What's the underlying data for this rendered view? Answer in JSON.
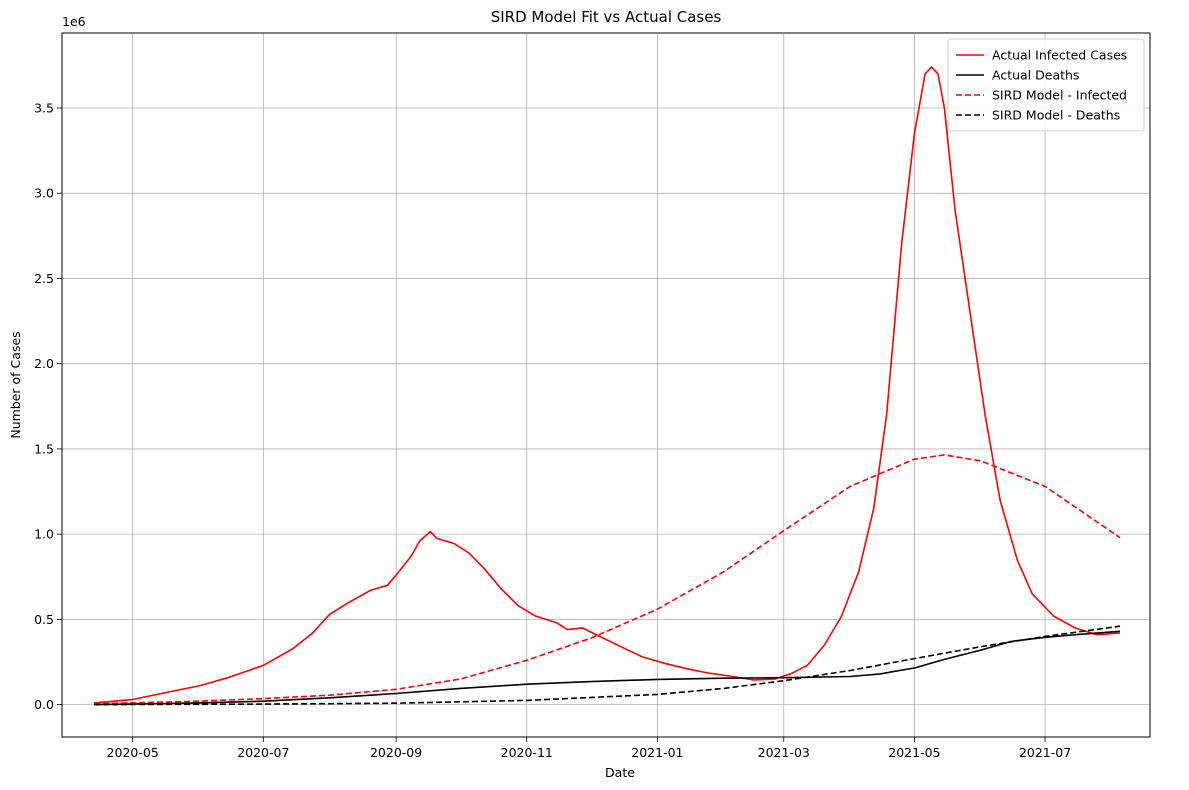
{
  "chart_data": {
    "type": "line",
    "title": "SIRD Model Fit vs Actual Cases",
    "xlabel": "Date",
    "ylabel": "Number of Cases",
    "y_scale_note": "1e6",
    "grid": true,
    "legend_position": "top-right",
    "x_range": [
      "2020-03-29",
      "2021-08-19"
    ],
    "ylim": [
      -190000,
      3940000
    ],
    "x_ticks": [
      {
        "label": "2020-05",
        "date": "2020-05-01"
      },
      {
        "label": "2020-07",
        "date": "2020-07-01"
      },
      {
        "label": "2020-09",
        "date": "2020-09-01"
      },
      {
        "label": "2020-11",
        "date": "2020-11-01"
      },
      {
        "label": "2021-01",
        "date": "2021-01-01"
      },
      {
        "label": "2021-03",
        "date": "2021-03-01"
      },
      {
        "label": "2021-05",
        "date": "2021-05-01"
      },
      {
        "label": "2021-07",
        "date": "2021-07-01"
      }
    ],
    "y_ticks": [
      {
        "label": "0.0",
        "value": 0
      },
      {
        "label": "0.5",
        "value": 500000
      },
      {
        "label": "1.0",
        "value": 1000000
      },
      {
        "label": "1.5",
        "value": 1500000
      },
      {
        "label": "2.0",
        "value": 2000000
      },
      {
        "label": "2.5",
        "value": 2500000
      },
      {
        "label": "3.0",
        "value": 3000000
      },
      {
        "label": "3.5",
        "value": 3500000
      }
    ],
    "series": [
      {
        "name": "Actual Infected Cases",
        "color": "#ff0000",
        "dash": "solid",
        "points": [
          [
            "2020-04-13",
            10000
          ],
          [
            "2020-05-01",
            30000
          ],
          [
            "2020-05-20",
            80000
          ],
          [
            "2020-06-01",
            110000
          ],
          [
            "2020-06-15",
            160000
          ],
          [
            "2020-07-01",
            230000
          ],
          [
            "2020-07-15",
            330000
          ],
          [
            "2020-07-24",
            420000
          ],
          [
            "2020-08-01",
            530000
          ],
          [
            "2020-08-10",
            600000
          ],
          [
            "2020-08-20",
            670000
          ],
          [
            "2020-08-28",
            700000
          ],
          [
            "2020-09-01",
            760000
          ],
          [
            "2020-09-08",
            870000
          ],
          [
            "2020-09-12",
            960000
          ],
          [
            "2020-09-17",
            1015000
          ],
          [
            "2020-09-20",
            975000
          ],
          [
            "2020-09-28",
            945000
          ],
          [
            "2020-10-05",
            890000
          ],
          [
            "2020-10-12",
            800000
          ],
          [
            "2020-10-20",
            680000
          ],
          [
            "2020-10-28",
            580000
          ],
          [
            "2020-11-05",
            520000
          ],
          [
            "2020-11-15",
            480000
          ],
          [
            "2020-11-20",
            440000
          ],
          [
            "2020-11-27",
            450000
          ],
          [
            "2020-12-05",
            400000
          ],
          [
            "2020-12-15",
            340000
          ],
          [
            "2020-12-25",
            280000
          ],
          [
            "2021-01-05",
            240000
          ],
          [
            "2021-01-15",
            210000
          ],
          [
            "2021-01-25",
            185000
          ],
          [
            "2021-02-05",
            165000
          ],
          [
            "2021-02-15",
            145000
          ],
          [
            "2021-02-25",
            150000
          ],
          [
            "2021-03-05",
            185000
          ],
          [
            "2021-03-12",
            230000
          ],
          [
            "2021-03-20",
            350000
          ],
          [
            "2021-03-28",
            520000
          ],
          [
            "2021-04-05",
            780000
          ],
          [
            "2021-04-12",
            1150000
          ],
          [
            "2021-04-18",
            1700000
          ],
          [
            "2021-04-25",
            2700000
          ],
          [
            "2021-05-01",
            3350000
          ],
          [
            "2021-05-06",
            3700000
          ],
          [
            "2021-05-09",
            3740000
          ],
          [
            "2021-05-12",
            3700000
          ],
          [
            "2021-05-15",
            3500000
          ],
          [
            "2021-05-20",
            2900000
          ],
          [
            "2021-05-27",
            2300000
          ],
          [
            "2021-06-03",
            1700000
          ],
          [
            "2021-06-10",
            1200000
          ],
          [
            "2021-06-18",
            850000
          ],
          [
            "2021-06-25",
            650000
          ],
          [
            "2021-07-05",
            520000
          ],
          [
            "2021-07-15",
            450000
          ],
          [
            "2021-07-25",
            410000
          ],
          [
            "2021-08-05",
            420000
          ]
        ]
      },
      {
        "name": "Actual Deaths",
        "color": "#000000",
        "dash": "solid",
        "points": [
          [
            "2020-04-13",
            0
          ],
          [
            "2020-06-01",
            10000
          ],
          [
            "2020-07-01",
            20000
          ],
          [
            "2020-08-01",
            40000
          ],
          [
            "2020-09-01",
            65000
          ],
          [
            "2020-10-01",
            95000
          ],
          [
            "2020-11-01",
            120000
          ],
          [
            "2020-12-01",
            135000
          ],
          [
            "2021-01-01",
            148000
          ],
          [
            "2021-02-01",
            155000
          ],
          [
            "2021-03-01",
            158000
          ],
          [
            "2021-04-01",
            165000
          ],
          [
            "2021-04-15",
            180000
          ],
          [
            "2021-05-01",
            215000
          ],
          [
            "2021-05-15",
            265000
          ],
          [
            "2021-06-01",
            320000
          ],
          [
            "2021-06-15",
            370000
          ],
          [
            "2021-07-01",
            395000
          ],
          [
            "2021-07-15",
            410000
          ],
          [
            "2021-08-05",
            430000
          ]
        ]
      },
      {
        "name": "SIRD Model - Infected",
        "color": "#ff0000",
        "dash": "dashed",
        "points": [
          [
            "2020-04-13",
            5000
          ],
          [
            "2020-06-01",
            20000
          ],
          [
            "2020-07-01",
            35000
          ],
          [
            "2020-08-01",
            55000
          ],
          [
            "2020-09-01",
            90000
          ],
          [
            "2020-10-01",
            150000
          ],
          [
            "2020-11-01",
            260000
          ],
          [
            "2020-12-01",
            390000
          ],
          [
            "2021-01-01",
            560000
          ],
          [
            "2021-02-01",
            780000
          ],
          [
            "2021-03-01",
            1020000
          ],
          [
            "2021-04-01",
            1280000
          ],
          [
            "2021-05-01",
            1440000
          ],
          [
            "2021-05-15",
            1465000
          ],
          [
            "2021-06-01",
            1430000
          ],
          [
            "2021-07-01",
            1280000
          ],
          [
            "2021-08-05",
            980000
          ]
        ]
      },
      {
        "name": "SIRD Model - Deaths",
        "color": "#000000",
        "dash": "dashed",
        "points": [
          [
            "2020-04-13",
            0
          ],
          [
            "2020-07-01",
            3000
          ],
          [
            "2020-09-01",
            8000
          ],
          [
            "2020-11-01",
            25000
          ],
          [
            "2021-01-01",
            60000
          ],
          [
            "2021-02-01",
            95000
          ],
          [
            "2021-03-01",
            140000
          ],
          [
            "2021-04-01",
            200000
          ],
          [
            "2021-05-01",
            270000
          ],
          [
            "2021-06-01",
            340000
          ],
          [
            "2021-07-01",
            400000
          ],
          [
            "2021-08-05",
            460000
          ]
        ]
      }
    ]
  }
}
